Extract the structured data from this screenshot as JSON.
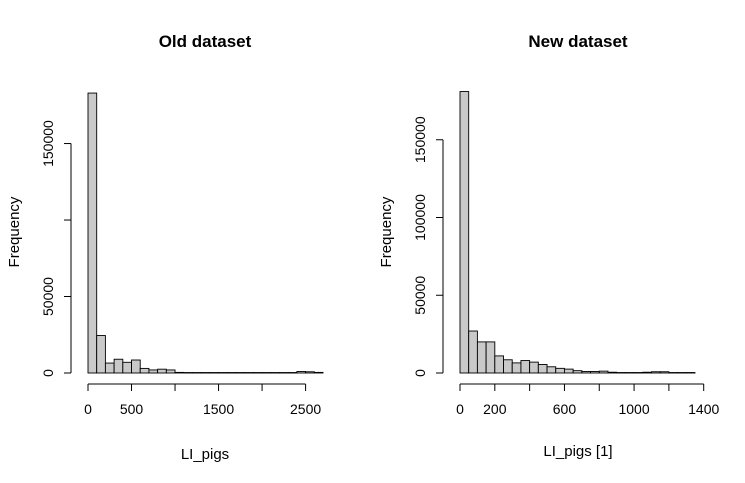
{
  "chart_data": [
    {
      "type": "bar",
      "title": "Old dataset",
      "xlabel": "LI_pigs",
      "ylabel": "Frequency",
      "xlim": [
        0,
        2700
      ],
      "ylim": [
        0,
        185000
      ],
      "bin_width": 100,
      "x_ticks": [
        {
          "value": 0,
          "label": "0"
        },
        {
          "value": 500,
          "label": "500"
        },
        {
          "value": 1000,
          "label": ""
        },
        {
          "value": 1500,
          "label": "1500"
        },
        {
          "value": 2000,
          "label": ""
        },
        {
          "value": 2500,
          "label": "2500"
        }
      ],
      "y_ticks": [
        {
          "value": 0,
          "label": "0"
        },
        {
          "value": 50000,
          "label": "50000"
        },
        {
          "value": 100000,
          "label": ""
        },
        {
          "value": 150000,
          "label": "150000"
        }
      ],
      "bins": [
        {
          "x0": 0,
          "x1": 100,
          "count": 183000
        },
        {
          "x0": 100,
          "x1": 200,
          "count": 24500
        },
        {
          "x0": 200,
          "x1": 300,
          "count": 6500
        },
        {
          "x0": 300,
          "x1": 400,
          "count": 9000
        },
        {
          "x0": 400,
          "x1": 500,
          "count": 7000
        },
        {
          "x0": 500,
          "x1": 600,
          "count": 8500
        },
        {
          "x0": 600,
          "x1": 700,
          "count": 3000
        },
        {
          "x0": 700,
          "x1": 800,
          "count": 2000
        },
        {
          "x0": 800,
          "x1": 900,
          "count": 2500
        },
        {
          "x0": 900,
          "x1": 1000,
          "count": 2000
        },
        {
          "x0": 1000,
          "x1": 1100,
          "count": 400
        },
        {
          "x0": 1100,
          "x1": 1200,
          "count": 300
        },
        {
          "x0": 1200,
          "x1": 1300,
          "count": 300
        },
        {
          "x0": 1300,
          "x1": 1400,
          "count": 300
        },
        {
          "x0": 1400,
          "x1": 1500,
          "count": 300
        },
        {
          "x0": 1500,
          "x1": 1600,
          "count": 300
        },
        {
          "x0": 1600,
          "x1": 1700,
          "count": 300
        },
        {
          "x0": 1700,
          "x1": 1800,
          "count": 300
        },
        {
          "x0": 1800,
          "x1": 1900,
          "count": 300
        },
        {
          "x0": 1900,
          "x1": 2000,
          "count": 300
        },
        {
          "x0": 2000,
          "x1": 2100,
          "count": 300
        },
        {
          "x0": 2100,
          "x1": 2200,
          "count": 300
        },
        {
          "x0": 2200,
          "x1": 2300,
          "count": 300
        },
        {
          "x0": 2300,
          "x1": 2400,
          "count": 300
        },
        {
          "x0": 2400,
          "x1": 2500,
          "count": 1000
        },
        {
          "x0": 2500,
          "x1": 2600,
          "count": 800
        },
        {
          "x0": 2600,
          "x1": 2700,
          "count": 400
        }
      ]
    },
    {
      "type": "bar",
      "title": "New dataset",
      "xlabel": "LI_pigs [1]",
      "ylabel": "Frequency",
      "xlim": [
        0,
        1350
      ],
      "ylim": [
        0,
        182000
      ],
      "bin_width": 50,
      "x_ticks": [
        {
          "value": 0,
          "label": "0"
        },
        {
          "value": 200,
          "label": "200"
        },
        {
          "value": 400,
          "label": ""
        },
        {
          "value": 600,
          "label": "600"
        },
        {
          "value": 800,
          "label": ""
        },
        {
          "value": 1000,
          "label": "1000"
        },
        {
          "value": 1200,
          "label": ""
        },
        {
          "value": 1400,
          "label": "1400"
        }
      ],
      "y_ticks": [
        {
          "value": 0,
          "label": "0"
        },
        {
          "value": 50000,
          "label": "50000"
        },
        {
          "value": 100000,
          "label": "100000"
        },
        {
          "value": 150000,
          "label": "150000"
        }
      ],
      "bins": [
        {
          "x0": 0,
          "x1": 50,
          "count": 181000
        },
        {
          "x0": 50,
          "x1": 100,
          "count": 27000
        },
        {
          "x0": 100,
          "x1": 150,
          "count": 20000
        },
        {
          "x0": 150,
          "x1": 200,
          "count": 20000
        },
        {
          "x0": 200,
          "x1": 250,
          "count": 11000
        },
        {
          "x0": 250,
          "x1": 300,
          "count": 8500
        },
        {
          "x0": 300,
          "x1": 350,
          "count": 6500
        },
        {
          "x0": 350,
          "x1": 400,
          "count": 8000
        },
        {
          "x0": 400,
          "x1": 450,
          "count": 7000
        },
        {
          "x0": 450,
          "x1": 500,
          "count": 5500
        },
        {
          "x0": 500,
          "x1": 550,
          "count": 4000
        },
        {
          "x0": 550,
          "x1": 600,
          "count": 3000
        },
        {
          "x0": 600,
          "x1": 650,
          "count": 2500
        },
        {
          "x0": 650,
          "x1": 700,
          "count": 1500
        },
        {
          "x0": 700,
          "x1": 750,
          "count": 1000
        },
        {
          "x0": 750,
          "x1": 800,
          "count": 1000
        },
        {
          "x0": 800,
          "x1": 850,
          "count": 1200
        },
        {
          "x0": 850,
          "x1": 900,
          "count": 500
        },
        {
          "x0": 900,
          "x1": 950,
          "count": 300
        },
        {
          "x0": 950,
          "x1": 1000,
          "count": 300
        },
        {
          "x0": 1000,
          "x1": 1050,
          "count": 300
        },
        {
          "x0": 1050,
          "x1": 1100,
          "count": 500
        },
        {
          "x0": 1100,
          "x1": 1150,
          "count": 800
        },
        {
          "x0": 1150,
          "x1": 1200,
          "count": 800
        },
        {
          "x0": 1200,
          "x1": 1250,
          "count": 300
        },
        {
          "x0": 1250,
          "x1": 1300,
          "count": 300
        },
        {
          "x0": 1300,
          "x1": 1350,
          "count": 300
        }
      ]
    }
  ]
}
